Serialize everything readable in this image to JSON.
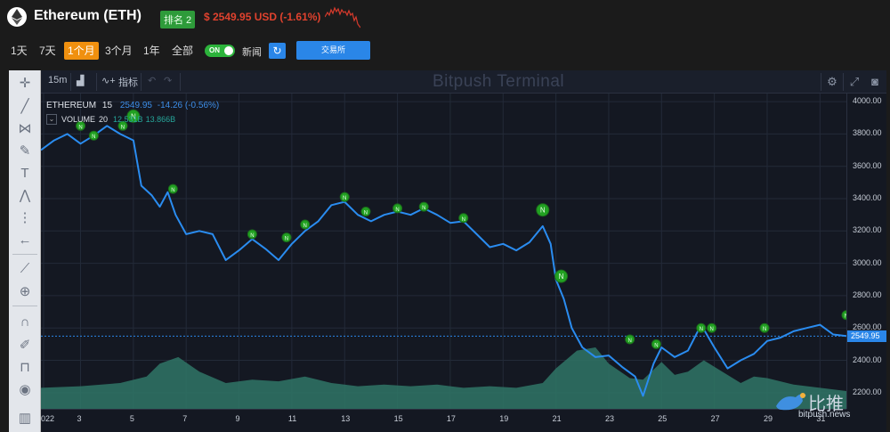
{
  "header": {
    "title": "Ethereum (ETH)",
    "rank": "排名 2",
    "price": "$ 2549.95 USD (-1.61%)"
  },
  "ranges": [
    "1天",
    "7天",
    "1个月",
    "3个月",
    "1年",
    "全部"
  ],
  "active_range": "1个月",
  "news_toggle": {
    "state": "ON",
    "label": "新闻"
  },
  "exchange_button": "交易所",
  "terminal": {
    "interval": "15m",
    "indicators_label": "指标",
    "watermark": "Bitpush Terminal",
    "legend_symbol": "ETHEREUM",
    "legend_interval": "15",
    "legend_last": "2549.95",
    "legend_change": "-14.26 (-0.56%)",
    "volume_label": "VOLUME",
    "volume_period": "20",
    "volume_v1": "12.531B",
    "volume_v2": "13.866B",
    "current_price_tag": "2549.95"
  },
  "brand": {
    "name": "比推",
    "url": "bitpush.news"
  },
  "chart_data": {
    "type": "line",
    "y_ticks": [
      "4000.00",
      "3800.00",
      "3600.00",
      "3400.00",
      "3200.00",
      "3000.00",
      "2800.00",
      "2600.00",
      "2400.00",
      "2200.00"
    ],
    "x_ticks": [
      "022",
      "3",
      "5",
      "7",
      "9",
      "11",
      "13",
      "15",
      "17",
      "19",
      "21",
      "23",
      "25",
      "27",
      "29",
      "31"
    ],
    "ylim": [
      2100,
      4050
    ],
    "price_series": [
      [
        1.5,
        3700
      ],
      [
        2.0,
        3760
      ],
      [
        2.5,
        3800
      ],
      [
        3.0,
        3740
      ],
      [
        3.5,
        3790
      ],
      [
        4.0,
        3850
      ],
      [
        4.5,
        3800
      ],
      [
        5.0,
        3760
      ],
      [
        5.3,
        3480
      ],
      [
        5.7,
        3420
      ],
      [
        6.0,
        3350
      ],
      [
        6.3,
        3440
      ],
      [
        6.6,
        3300
      ],
      [
        7.0,
        3180
      ],
      [
        7.5,
        3200
      ],
      [
        8.0,
        3180
      ],
      [
        8.5,
        3020
      ],
      [
        9.0,
        3080
      ],
      [
        9.5,
        3150
      ],
      [
        10.0,
        3090
      ],
      [
        10.5,
        3020
      ],
      [
        11.0,
        3120
      ],
      [
        11.5,
        3200
      ],
      [
        12.0,
        3260
      ],
      [
        12.5,
        3360
      ],
      [
        13.0,
        3380
      ],
      [
        13.5,
        3300
      ],
      [
        14.0,
        3260
      ],
      [
        14.5,
        3300
      ],
      [
        15.0,
        3320
      ],
      [
        15.5,
        3300
      ],
      [
        16.0,
        3340
      ],
      [
        16.5,
        3300
      ],
      [
        17.0,
        3250
      ],
      [
        17.5,
        3260
      ],
      [
        18.0,
        3180
      ],
      [
        18.5,
        3100
      ],
      [
        19.0,
        3120
      ],
      [
        19.5,
        3080
      ],
      [
        20.0,
        3130
      ],
      [
        20.5,
        3230
      ],
      [
        20.8,
        3120
      ],
      [
        21.0,
        2900
      ],
      [
        21.3,
        2780
      ],
      [
        21.6,
        2600
      ],
      [
        22.0,
        2480
      ],
      [
        22.5,
        2420
      ],
      [
        23.0,
        2430
      ],
      [
        23.5,
        2360
      ],
      [
        24.0,
        2300
      ],
      [
        24.3,
        2180
      ],
      [
        24.7,
        2380
      ],
      [
        25.0,
        2480
      ],
      [
        25.5,
        2420
      ],
      [
        26.0,
        2460
      ],
      [
        26.5,
        2620
      ],
      [
        27.0,
        2480
      ],
      [
        27.5,
        2350
      ],
      [
        28.0,
        2400
      ],
      [
        28.5,
        2440
      ],
      [
        29.0,
        2520
      ],
      [
        29.5,
        2540
      ],
      [
        30.0,
        2580
      ],
      [
        30.5,
        2600
      ],
      [
        31.0,
        2620
      ],
      [
        31.5,
        2560
      ],
      [
        32.0,
        2550
      ]
    ],
    "volume_series": [
      [
        1.5,
        2230
      ],
      [
        3.0,
        2240
      ],
      [
        4.5,
        2260
      ],
      [
        5.5,
        2300
      ],
      [
        6.0,
        2380
      ],
      [
        6.7,
        2420
      ],
      [
        7.5,
        2330
      ],
      [
        8.5,
        2260
      ],
      [
        9.5,
        2280
      ],
      [
        10.5,
        2270
      ],
      [
        11.5,
        2300
      ],
      [
        12.5,
        2260
      ],
      [
        13.5,
        2240
      ],
      [
        14.5,
        2250
      ],
      [
        15.5,
        2240
      ],
      [
        16.5,
        2250
      ],
      [
        17.5,
        2230
      ],
      [
        18.5,
        2240
      ],
      [
        19.5,
        2230
      ],
      [
        20.5,
        2260
      ],
      [
        21.0,
        2350
      ],
      [
        21.8,
        2460
      ],
      [
        22.5,
        2480
      ],
      [
        23.0,
        2380
      ],
      [
        23.8,
        2290
      ],
      [
        24.3,
        2280
      ],
      [
        25.0,
        2390
      ],
      [
        25.5,
        2310
      ],
      [
        26.0,
        2330
      ],
      [
        26.6,
        2400
      ],
      [
        27.3,
        2330
      ],
      [
        28.0,
        2260
      ],
      [
        28.5,
        2300
      ],
      [
        29.0,
        2290
      ],
      [
        30.0,
        2250
      ],
      [
        31.0,
        2230
      ],
      [
        32.0,
        2210
      ]
    ],
    "news_markers": [
      [
        3.0,
        3850
      ],
      [
        3.5,
        3790
      ],
      [
        4.6,
        3850
      ],
      [
        5.0,
        3910
      ],
      [
        6.5,
        3460
      ],
      [
        9.5,
        3180
      ],
      [
        10.8,
        3160
      ],
      [
        11.5,
        3240
      ],
      [
        13.0,
        3410
      ],
      [
        13.8,
        3320
      ],
      [
        15.0,
        3340
      ],
      [
        16.0,
        3350
      ],
      [
        17.5,
        3280
      ],
      [
        20.5,
        3330
      ],
      [
        21.2,
        2920
      ],
      [
        23.8,
        2530
      ],
      [
        24.8,
        2500
      ],
      [
        26.5,
        2600
      ],
      [
        26.9,
        2600
      ],
      [
        28.9,
        2600
      ],
      [
        32.0,
        2680
      ]
    ],
    "current_price": 2549.95
  }
}
